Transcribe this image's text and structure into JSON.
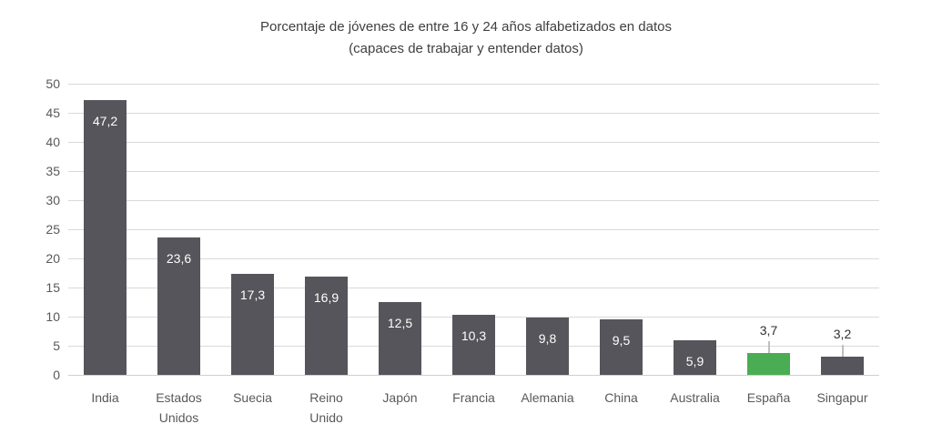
{
  "chart_data": {
    "type": "bar",
    "title": "Porcentaje de jóvenes de entre 16 y 24 años alfabetizados en datos (capaces de trabajar y entender datos)",
    "title_lines": [
      "Porcentaje de jóvenes de entre 16 y 24 años alfabetizados en datos",
      "(capaces de trabajar y entender datos)"
    ],
    "xlabel": "",
    "ylabel": "",
    "ylim": [
      0,
      50
    ],
    "ytick_step": 5,
    "yticks": [
      0,
      5,
      10,
      15,
      20,
      25,
      30,
      35,
      40,
      45,
      50
    ],
    "grid": true,
    "legend": false,
    "categories": [
      "India",
      "Estados Unidos",
      "Suecia",
      "Reino Unido",
      "Japón",
      "Francia",
      "Alemania",
      "China",
      "Australia",
      "España",
      "Singapur"
    ],
    "values": [
      47.2,
      23.6,
      17.3,
      16.9,
      12.5,
      10.3,
      9.8,
      9.5,
      5.9,
      3.7,
      3.2
    ],
    "points": [
      {
        "category": "India",
        "label_lines": [
          "India"
        ],
        "value": 47.2,
        "display": "47,2",
        "label_position": "inside",
        "highlight": false
      },
      {
        "category": "Estados Unidos",
        "label_lines": [
          "Estados",
          "Unidos"
        ],
        "value": 23.6,
        "display": "23,6",
        "label_position": "inside",
        "highlight": false
      },
      {
        "category": "Suecia",
        "label_lines": [
          "Suecia"
        ],
        "value": 17.3,
        "display": "17,3",
        "label_position": "inside",
        "highlight": false
      },
      {
        "category": "Reino Unido",
        "label_lines": [
          "Reino",
          "Unido"
        ],
        "value": 16.9,
        "display": "16,9",
        "label_position": "inside",
        "highlight": false
      },
      {
        "category": "Japón",
        "label_lines": [
          "Japón"
        ],
        "value": 12.5,
        "display": "12,5",
        "label_position": "inside",
        "highlight": false
      },
      {
        "category": "Francia",
        "label_lines": [
          "Francia"
        ],
        "value": 10.3,
        "display": "10,3",
        "label_position": "inside",
        "highlight": false
      },
      {
        "category": "Alemania",
        "label_lines": [
          "Alemania"
        ],
        "value": 9.8,
        "display": "9,8",
        "label_position": "inside",
        "highlight": false
      },
      {
        "category": "China",
        "label_lines": [
          "China"
        ],
        "value": 9.5,
        "display": "9,5",
        "label_position": "inside",
        "highlight": false
      },
      {
        "category": "Australia",
        "label_lines": [
          "Australia"
        ],
        "value": 5.9,
        "display": "5,9",
        "label_position": "inside",
        "highlight": false
      },
      {
        "category": "España",
        "label_lines": [
          "España"
        ],
        "value": 3.7,
        "display": "3,7",
        "label_position": "outside",
        "highlight": true
      },
      {
        "category": "Singapur",
        "label_lines": [
          "Singapur"
        ],
        "value": 3.2,
        "display": "3,2",
        "label_position": "outside",
        "highlight": false
      }
    ],
    "colors": {
      "bar": "#55555B",
      "highlight": "#4BAD53",
      "inside_label": "#FFFFFF",
      "outside_label": "#303030",
      "axis_text": "#595959",
      "title_text": "#3F3F3F",
      "gridline": "#D9D9D9",
      "leader_line": "#BFBFBF",
      "background": "#FFFFFF"
    }
  }
}
